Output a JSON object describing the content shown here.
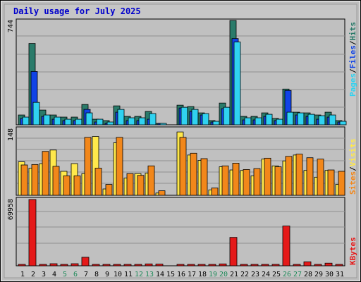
{
  "title": "Daily usage for July 2025",
  "colors": {
    "hits": "#2a7b6a",
    "files": "#1043e6",
    "pages": "#30d2f0",
    "visits": "#f2871a",
    "sites": "#ffe84b",
    "kbytes": "#e51919",
    "weekend_label": "#1f8a5a",
    "plot_bg": "#c0c0c0",
    "frame": "#a7a7a7"
  },
  "legend": {
    "top": {
      "pages": "Pages",
      "files": "Files",
      "hits": "Hits",
      "sep": "/"
    },
    "middle": {
      "sites": "Sites",
      "visits": "Visits",
      "sep": "/"
    },
    "bottom": {
      "kbytes": "KBytes"
    }
  },
  "chart_data": {
    "type": "bar",
    "title": "Daily usage for July 2025",
    "categories": [
      "1",
      "2",
      "3",
      "4",
      "5",
      "6",
      "7",
      "8",
      "9",
      "10",
      "11",
      "12",
      "13",
      "14",
      "15",
      "16",
      "17",
      "18",
      "19",
      "20",
      "21",
      "22",
      "23",
      "24",
      "25",
      "26",
      "27",
      "28",
      "29",
      "30",
      "31"
    ],
    "weekend_days": [
      "5",
      "6",
      "12",
      "13",
      "19",
      "20",
      "26",
      "27"
    ],
    "panels": [
      {
        "name": "top",
        "y_max_label": "744",
        "ylim": [
          0,
          744
        ],
        "series": [
          {
            "name": "Hits",
            "values": [
              70,
              580,
              105,
              70,
              55,
              55,
              145,
              40,
              30,
              135,
              60,
              60,
              95,
              10,
              0,
              140,
              130,
              85,
              30,
              155,
              744,
              60,
              60,
              85,
              45,
              255,
              90,
              85,
              70,
              90,
              30
            ]
          },
          {
            "name": "Files",
            "values": [
              45,
              380,
              60,
              40,
              30,
              30,
              110,
              20,
              10,
              90,
              30,
              30,
              40,
              5,
              0,
              120,
              95,
              70,
              20,
              115,
              615,
              35,
              35,
              60,
              30,
              245,
              70,
              60,
              40,
              55,
              20
            ]
          },
          {
            "name": "Pages",
            "values": [
              55,
              160,
              70,
              55,
              40,
              40,
              85,
              40,
              20,
              110,
              50,
              50,
              80,
              5,
              0,
              125,
              110,
              80,
              25,
              125,
              590,
              50,
              50,
              75,
              40,
              90,
              85,
              75,
              65,
              70,
              25
            ]
          }
        ]
      },
      {
        "name": "middle",
        "y_max_label": "148",
        "ylim": [
          0,
          148
        ],
        "series": [
          {
            "name": "Sites",
            "values": [
              74,
              60,
              70,
              100,
              53,
              70,
              48,
              130,
              14,
              116,
              38,
              48,
              49,
              5,
              0,
              140,
              89,
              77,
              12,
              63,
              56,
              55,
              43,
              80,
              65,
              76,
              89,
              55,
              40,
              55,
              24
            ]
          },
          {
            "name": "Visits",
            "values": [
              67,
              68,
              97,
              64,
              43,
              43,
              128,
              60,
              24,
              128,
              48,
              44,
              65,
              10,
              0,
              128,
              93,
              81,
              16,
              65,
              71,
              57,
              59,
              82,
              63,
              86,
              91,
              83,
              80,
              56,
              53
            ]
          }
        ]
      },
      {
        "name": "bottom",
        "y_max_label": "69958",
        "ylim": [
          0,
          69958
        ],
        "series": [
          {
            "name": "KBytes",
            "values": [
              500,
              69958,
              1000,
              2200,
              700,
              2200,
              9000,
              1200,
              1000,
              1000,
              1500,
              1200,
              2000,
              1800,
              0,
              1500,
              800,
              1000,
              1200,
              2000,
              30000,
              800,
              800,
              1000,
              1500,
              42000,
              1000,
              4200,
              1200,
              2800,
              800
            ]
          }
        ]
      }
    ]
  }
}
